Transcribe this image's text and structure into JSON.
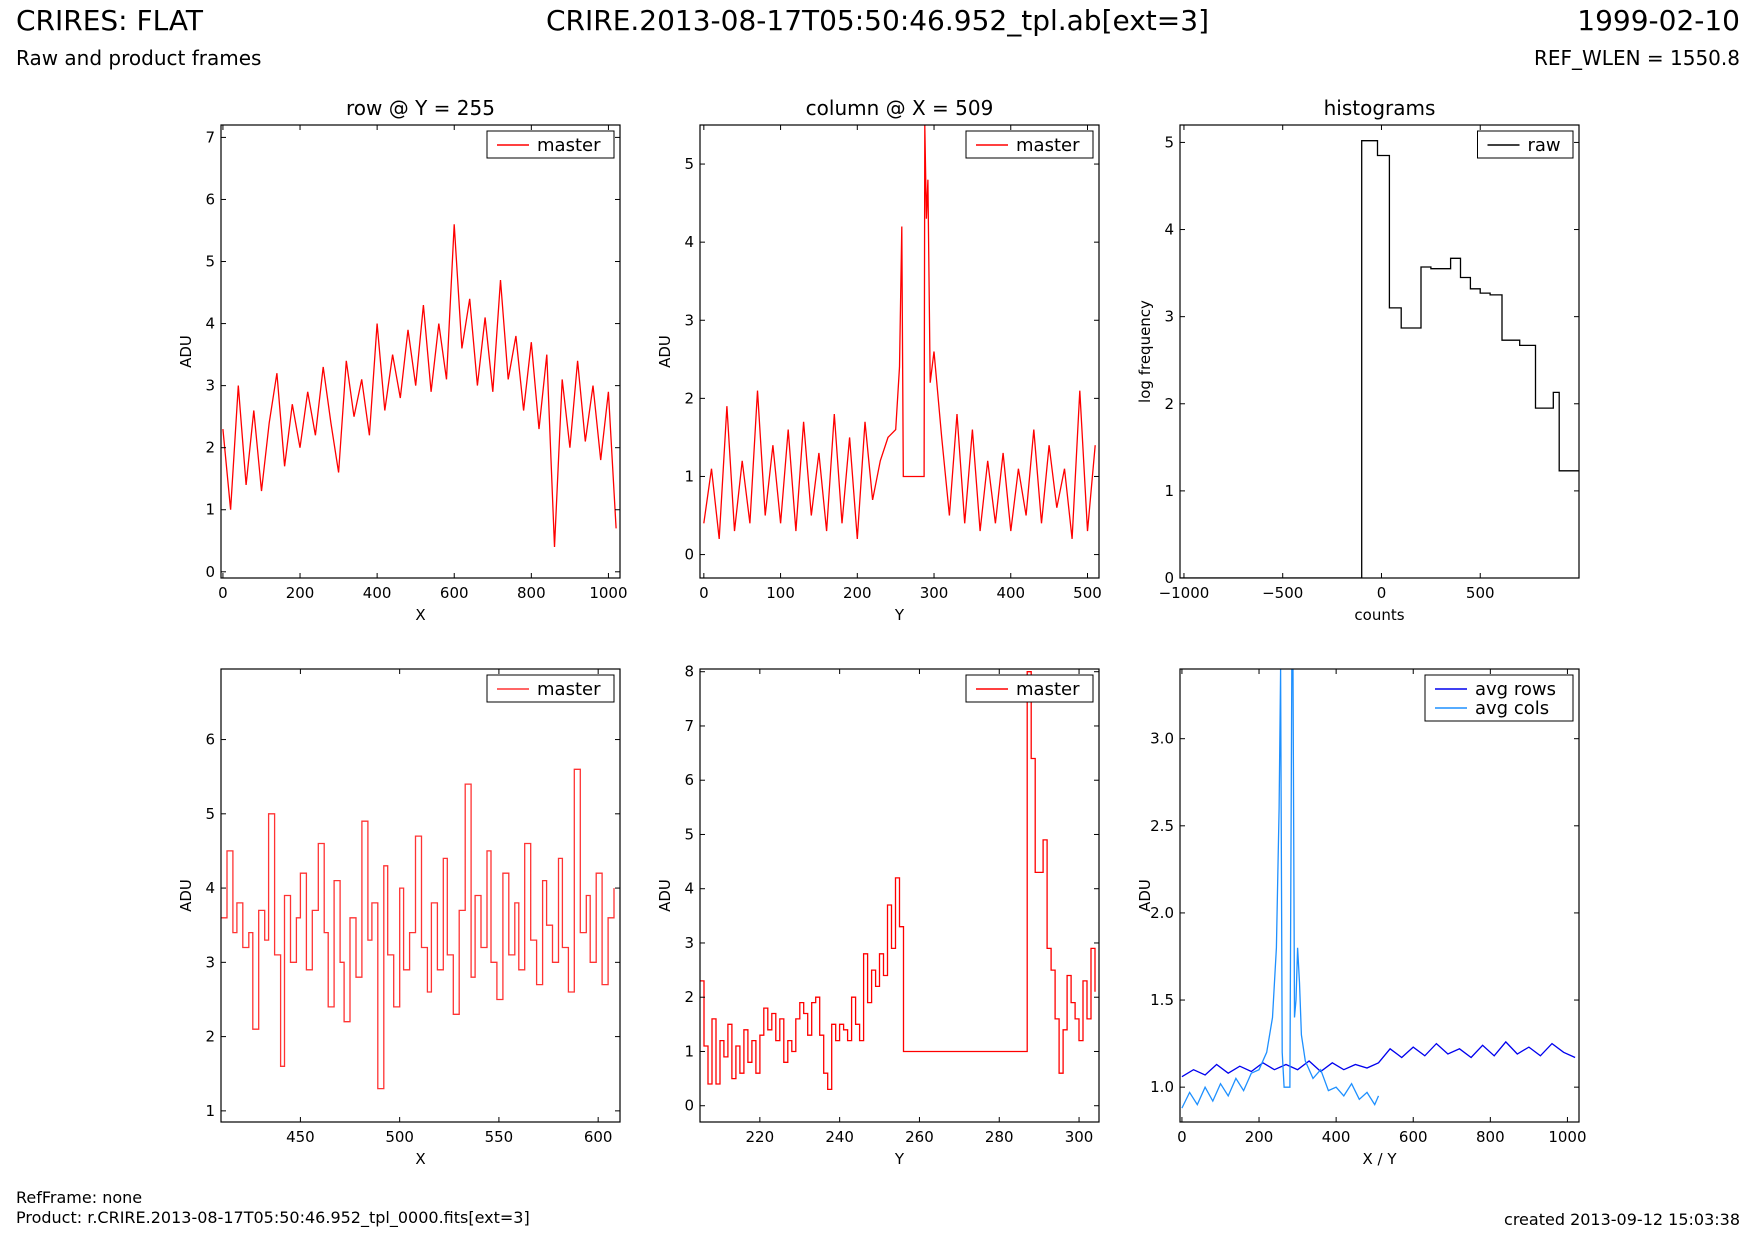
{
  "header": {
    "title": "CRIRES: FLAT",
    "subtitle": "Raw and product frames",
    "file": "CRIRE.2013-08-17T05:50:46.952_tpl.ab[ext=3]",
    "date": "1999-02-10",
    "ref_wlen": "REF_WLEN = 1550.8"
  },
  "footer": {
    "refframe": "RefFrame: none",
    "product": "Product: r.CRIRE.2013-08-17T05:50:46.952_tpl_0000.fits[ext=3]",
    "created": "created 2013-09-12 15:03:38"
  },
  "colors": {
    "master": "#ff0000",
    "raw": "#000000",
    "avg_rows": "#0000ee",
    "avg_cols": "#1e90ff"
  },
  "chart_data": [
    {
      "type": "line",
      "title": "row @ Y = 255",
      "xlabel": "X",
      "ylabel": "ADU",
      "xlim": [
        -5,
        1030
      ],
      "ylim": [
        -0.1,
        7.2
      ],
      "xticks": [
        0,
        200,
        400,
        600,
        800,
        1000
      ],
      "yticks": [
        0,
        1,
        2,
        3,
        4,
        5,
        6,
        7
      ],
      "legend": "upper-right",
      "series": [
        {
          "name": "master",
          "color": "#ff0000",
          "step": false,
          "x": [
            0,
            20,
            40,
            60,
            80,
            100,
            120,
            140,
            160,
            180,
            200,
            220,
            240,
            260,
            280,
            300,
            320,
            340,
            360,
            380,
            400,
            420,
            440,
            460,
            480,
            500,
            520,
            540,
            560,
            580,
            600,
            620,
            640,
            660,
            680,
            700,
            720,
            740,
            760,
            780,
            800,
            820,
            840,
            860,
            880,
            900,
            920,
            940,
            960,
            980,
            1000,
            1020
          ],
          "y": [
            2.3,
            1.0,
            3.0,
            1.4,
            2.6,
            1.3,
            2.4,
            3.2,
            1.7,
            2.7,
            2.0,
            2.9,
            2.2,
            3.3,
            2.4,
            1.6,
            3.4,
            2.5,
            3.1,
            2.2,
            4.0,
            2.6,
            3.5,
            2.8,
            3.9,
            3.0,
            4.3,
            2.9,
            4.0,
            3.1,
            5.6,
            3.6,
            4.4,
            3.0,
            4.1,
            2.9,
            4.7,
            3.1,
            3.8,
            2.6,
            3.7,
            2.3,
            3.5,
            0.4,
            3.1,
            2.0,
            3.4,
            2.1,
            3.0,
            1.8,
            2.9,
            0.7
          ]
        }
      ]
    },
    {
      "type": "line",
      "title": "column @ X = 509",
      "xlabel": "Y",
      "ylabel": "ADU",
      "xlim": [
        -5,
        515
      ],
      "ylim": [
        -0.3,
        5.5
      ],
      "xticks": [
        0,
        100,
        200,
        300,
        400,
        500
      ],
      "yticks": [
        0,
        1,
        2,
        3,
        4,
        5
      ],
      "legend": "upper-right",
      "series": [
        {
          "name": "master",
          "color": "#ff0000",
          "step": false,
          "x": [
            0,
            10,
            20,
            30,
            40,
            50,
            60,
            70,
            80,
            90,
            100,
            110,
            120,
            130,
            140,
            150,
            160,
            170,
            180,
            190,
            200,
            210,
            220,
            230,
            240,
            250,
            255,
            258,
            260,
            287,
            288,
            290,
            292,
            295,
            300,
            310,
            320,
            330,
            340,
            350,
            360,
            370,
            380,
            390,
            400,
            410,
            420,
            430,
            440,
            450,
            460,
            470,
            480,
            490,
            500,
            510
          ],
          "y": [
            0.4,
            1.1,
            0.2,
            1.9,
            0.3,
            1.2,
            0.4,
            2.1,
            0.5,
            1.4,
            0.4,
            1.6,
            0.3,
            1.7,
            0.5,
            1.3,
            0.3,
            1.8,
            0.4,
            1.5,
            0.2,
            1.7,
            0.7,
            1.2,
            1.5,
            1.6,
            2.4,
            4.2,
            1.0,
            1.0,
            5.5,
            4.3,
            4.8,
            2.2,
            2.6,
            1.5,
            0.5,
            1.8,
            0.4,
            1.6,
            0.3,
            1.2,
            0.4,
            1.3,
            0.3,
            1.1,
            0.5,
            1.6,
            0.4,
            1.4,
            0.6,
            1.1,
            0.2,
            2.1,
            0.3,
            1.4
          ]
        }
      ]
    },
    {
      "type": "line",
      "title": "histograms",
      "xlabel": "counts",
      "ylabel": "log frequency",
      "xlim": [
        -1020,
        1000
      ],
      "ylim": [
        0,
        5.2
      ],
      "xticks": [
        -1000,
        -500,
        0,
        500
      ],
      "yticks": [
        0,
        1,
        2,
        3,
        4,
        5
      ],
      "legend": "upper-right",
      "series": [
        {
          "name": "raw",
          "color": "#000000",
          "step": true,
          "x": [
            -1020,
            -100,
            -100,
            -20,
            40,
            100,
            200,
            250,
            350,
            400,
            450,
            500,
            550,
            610,
            700,
            780,
            830,
            870,
            900,
            1000
          ],
          "y": [
            0,
            0,
            5.02,
            4.85,
            3.1,
            2.87,
            3.57,
            3.55,
            3.67,
            3.45,
            3.32,
            3.27,
            3.25,
            2.73,
            2.67,
            1.95,
            1.95,
            2.13,
            1.23,
            1.23
          ]
        }
      ]
    },
    {
      "type": "line",
      "title": "",
      "xlabel": "X",
      "ylabel": "ADU",
      "xlim": [
        410,
        611
      ],
      "ylim": [
        0.85,
        6.95
      ],
      "xticks": [
        450,
        500,
        550,
        600
      ],
      "yticks": [
        1,
        2,
        3,
        4,
        5,
        6
      ],
      "legend": "upper-right",
      "series": [
        {
          "name": "master",
          "color": "#ff3333",
          "step": true,
          "x": [
            410,
            413,
            416,
            418,
            421,
            424,
            426,
            429,
            432,
            434,
            437,
            440,
            442,
            445,
            448,
            450,
            453,
            456,
            459,
            462,
            464,
            467,
            470,
            472,
            475,
            478,
            481,
            484,
            486,
            489,
            492,
            494,
            497,
            500,
            502,
            505,
            508,
            511,
            514,
            516,
            519,
            522,
            524,
            527,
            530,
            533,
            536,
            538,
            541,
            544,
            546,
            549,
            552,
            555,
            558,
            560,
            563,
            566,
            569,
            572,
            574,
            577,
            580,
            582,
            585,
            588,
            591,
            594,
            596,
            599,
            602,
            605,
            608
          ],
          "y": [
            3.6,
            4.5,
            3.4,
            3.8,
            3.2,
            3.4,
            2.1,
            3.7,
            3.3,
            5.0,
            3.1,
            1.6,
            3.9,
            3.0,
            3.6,
            4.2,
            2.9,
            3.7,
            4.6,
            3.4,
            2.4,
            4.1,
            3.0,
            2.2,
            3.6,
            2.8,
            4.9,
            3.3,
            3.8,
            1.3,
            4.3,
            3.1,
            2.4,
            4.0,
            2.9,
            3.4,
            4.7,
            3.2,
            2.6,
            3.8,
            2.9,
            4.4,
            3.1,
            2.3,
            3.7,
            5.4,
            2.8,
            3.9,
            3.2,
            4.5,
            3.0,
            2.5,
            4.2,
            3.1,
            3.8,
            2.9,
            4.6,
            3.3,
            2.7,
            4.1,
            3.5,
            3.0,
            4.4,
            3.2,
            2.6,
            5.6,
            3.4,
            3.9,
            3.0,
            4.2,
            2.7,
            3.6,
            4.0
          ]
        }
      ]
    },
    {
      "type": "line",
      "title": "",
      "xlabel": "Y",
      "ylabel": "ADU",
      "xlim": [
        205,
        305
      ],
      "ylim": [
        -0.3,
        8.05
      ],
      "xticks": [
        220,
        240,
        260,
        280,
        300
      ],
      "yticks": [
        0,
        1,
        2,
        3,
        4,
        5,
        6,
        7,
        8
      ],
      "legend": "upper-right",
      "series": [
        {
          "name": "master",
          "color": "#ff0000",
          "step": true,
          "x": [
            205,
            206,
            207,
            208,
            209,
            210,
            211,
            212,
            213,
            214,
            215,
            216,
            217,
            218,
            219,
            220,
            221,
            222,
            223,
            224,
            225,
            226,
            227,
            228,
            229,
            230,
            231,
            232,
            233,
            234,
            235,
            236,
            237,
            238,
            239,
            240,
            241,
            242,
            243,
            244,
            245,
            246,
            247,
            248,
            249,
            250,
            251,
            252,
            253,
            254,
            255,
            256,
            257,
            287,
            288,
            289,
            290,
            291,
            292,
            293,
            294,
            295,
            296,
            297,
            298,
            299,
            300,
            301,
            302,
            303,
            304
          ],
          "y": [
            2.3,
            1.1,
            0.4,
            1.6,
            0.4,
            1.2,
            0.9,
            1.5,
            0.5,
            1.1,
            0.6,
            1.4,
            0.8,
            1.2,
            0.6,
            1.3,
            1.8,
            1.4,
            1.7,
            1.2,
            1.6,
            0.8,
            1.2,
            1.0,
            1.6,
            1.9,
            1.7,
            1.3,
            1.9,
            2.0,
            1.3,
            0.6,
            0.3,
            1.5,
            1.2,
            1.5,
            1.4,
            1.2,
            2.0,
            1.5,
            1.2,
            2.8,
            1.9,
            2.5,
            2.2,
            2.8,
            2.4,
            3.7,
            2.9,
            4.2,
            3.3,
            1.0,
            1.0,
            8.0,
            6.4,
            4.3,
            4.3,
            4.9,
            2.9,
            2.5,
            1.6,
            0.6,
            1.4,
            2.4,
            1.9,
            1.6,
            1.2,
            2.3,
            1.6,
            2.9,
            2.1
          ]
        }
      ]
    },
    {
      "type": "line",
      "title": "",
      "xlabel": "X / Y",
      "ylabel": "ADU",
      "xlim": [
        -5,
        1030
      ],
      "ylim": [
        0.8,
        3.4
      ],
      "xticks": [
        0,
        200,
        400,
        600,
        800,
        1000
      ],
      "yticks": [
        1.0,
        1.5,
        2.0,
        2.5,
        3.0
      ],
      "legend": "upper-right",
      "series": [
        {
          "name": "avg rows",
          "color": "#0000ee",
          "step": false,
          "x": [
            0,
            30,
            60,
            90,
            120,
            150,
            180,
            210,
            240,
            270,
            300,
            330,
            360,
            390,
            420,
            450,
            480,
            510,
            540,
            570,
            600,
            630,
            660,
            690,
            720,
            750,
            780,
            810,
            840,
            870,
            900,
            930,
            960,
            990,
            1020
          ],
          "y": [
            1.06,
            1.1,
            1.07,
            1.13,
            1.08,
            1.12,
            1.09,
            1.14,
            1.1,
            1.13,
            1.1,
            1.15,
            1.09,
            1.14,
            1.1,
            1.13,
            1.11,
            1.14,
            1.22,
            1.17,
            1.23,
            1.18,
            1.25,
            1.19,
            1.22,
            1.17,
            1.24,
            1.18,
            1.26,
            1.19,
            1.23,
            1.18,
            1.25,
            1.2,
            1.17
          ]
        },
        {
          "name": "avg cols",
          "color": "#1e90ff",
          "step": false,
          "x": [
            0,
            20,
            40,
            60,
            80,
            100,
            120,
            140,
            160,
            180,
            200,
            220,
            235,
            245,
            252,
            256,
            260,
            265,
            280,
            285,
            288,
            292,
            296,
            300,
            305,
            310,
            320,
            340,
            360,
            380,
            400,
            420,
            440,
            460,
            480,
            500,
            510
          ],
          "y": [
            0.88,
            0.97,
            0.9,
            1.0,
            0.92,
            1.02,
            0.95,
            1.05,
            0.98,
            1.08,
            1.1,
            1.2,
            1.4,
            1.8,
            2.6,
            3.4,
            1.2,
            1.0,
            1.0,
            3.4,
            3.4,
            1.4,
            1.5,
            1.8,
            1.6,
            1.3,
            1.15,
            1.05,
            1.1,
            0.98,
            1.0,
            0.95,
            1.02,
            0.93,
            0.97,
            0.9,
            0.95
          ]
        }
      ]
    }
  ]
}
